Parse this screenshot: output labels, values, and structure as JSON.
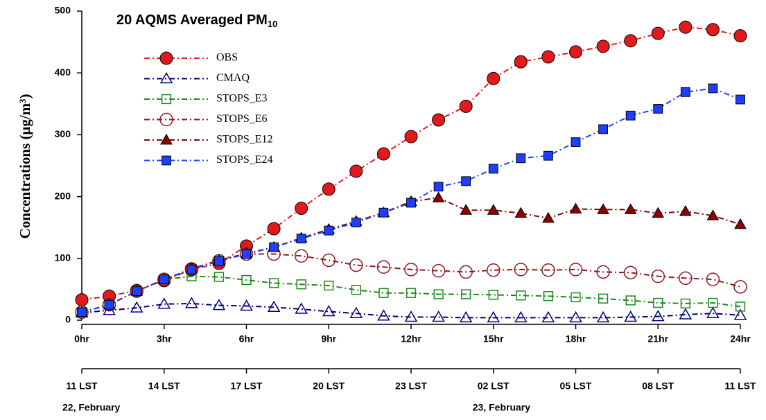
{
  "chart_data": {
    "type": "line",
    "title": "20 AQMS Averaged PM",
    "title_subscript": "10",
    "y_label": "Concentrations (μg/m³)",
    "x": [
      0,
      1,
      2,
      3,
      4,
      5,
      6,
      7,
      8,
      9,
      10,
      11,
      12,
      13,
      14,
      15,
      16,
      17,
      18,
      19,
      20,
      21,
      22,
      23,
      24
    ],
    "xlim": [
      0,
      24
    ],
    "xticks": [
      {
        "value": 0,
        "label": "0hr"
      },
      {
        "value": 3,
        "label": "3hr"
      },
      {
        "value": 6,
        "label": "6hr"
      },
      {
        "value": 9,
        "label": "9hr"
      },
      {
        "value": 12,
        "label": "12hr"
      },
      {
        "value": 15,
        "label": "15hr"
      },
      {
        "value": 18,
        "label": "18hr"
      },
      {
        "value": 21,
        "label": "21hr"
      },
      {
        "value": 24,
        "label": "24hr"
      }
    ],
    "lst_labels": [
      "11 LST",
      "14 LST",
      "17 LST",
      "20 LST",
      "23 LST",
      "02 LST",
      "05 LST",
      "08 LST",
      "11 LST"
    ],
    "date_labels": [
      "22, February",
      "23, February"
    ],
    "ylim": [
      0,
      500
    ],
    "yticks": [
      0,
      100,
      200,
      300,
      400,
      500
    ],
    "series": [
      {
        "name": "OBS",
        "color": "#e31a1c",
        "marker": "circle",
        "filled": true,
        "values": [
          33,
          39,
          48,
          64,
          82,
          92,
          120,
          148,
          181,
          212,
          241,
          269,
          297,
          324,
          346,
          391,
          418,
          426,
          434,
          443,
          452,
          464,
          474,
          470,
          460
        ]
      },
      {
        "name": "CMAQ",
        "color": "#000080",
        "marker": "triangle",
        "filled": false,
        "values": [
          12,
          16,
          20,
          26,
          27,
          24,
          23,
          21,
          18,
          14,
          11,
          7,
          5,
          5,
          4,
          4,
          4,
          4,
          4,
          4,
          5,
          6,
          9,
          11,
          8
        ]
      },
      {
        "name": "STOPS_E3",
        "color": "#1a8a1a",
        "marker": "square",
        "filled": false,
        "values": [
          13,
          25,
          47,
          66,
          71,
          70,
          65,
          60,
          58,
          56,
          49,
          44,
          44,
          42,
          42,
          41,
          40,
          39,
          37,
          35,
          32,
          28,
          27,
          28,
          22
        ]
      },
      {
        "name": "STOPS_E6",
        "color": "#8b1a1a",
        "marker": "circle",
        "filled": false,
        "values": [
          13,
          25,
          47,
          66,
          83,
          96,
          107,
          107,
          104,
          97,
          89,
          86,
          82,
          80,
          78,
          81,
          82,
          81,
          82,
          78,
          77,
          71,
          68,
          66,
          54
        ]
      },
      {
        "name": "STOPS_E12",
        "color": "#8b0000",
        "marker": "triangle",
        "filled": true,
        "values": [
          13,
          25,
          47,
          66,
          83,
          97,
          108,
          118,
          133,
          147,
          160,
          174,
          192,
          198,
          178,
          178,
          173,
          165,
          180,
          179,
          179,
          173,
          176,
          169,
          155
        ]
      },
      {
        "name": "STOPS_E24",
        "color": "#1f3fff",
        "marker": "square",
        "filled": true,
        "values": [
          13,
          25,
          47,
          66,
          82,
          96,
          107,
          118,
          132,
          145,
          158,
          174,
          190,
          216,
          225,
          245,
          262,
          266,
          288,
          309,
          331,
          342,
          369,
          375,
          357
        ]
      }
    ]
  }
}
